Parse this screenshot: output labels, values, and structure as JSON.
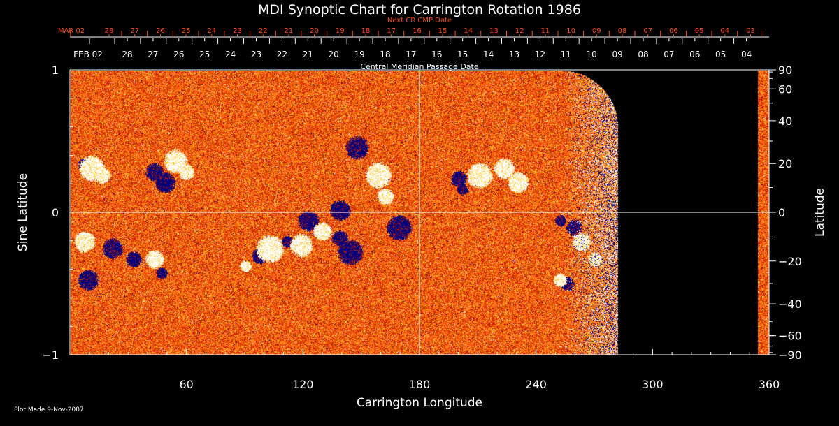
{
  "chart_data": {
    "type": "heatmap",
    "title": "MDI Synoptic Chart for Carrington Rotation 1986",
    "xlabel": "Carrington Longitude",
    "ylabel": "Sine Latitude",
    "ylabel_right": "Latitude",
    "xlim": [
      0,
      360
    ],
    "ylim": [
      -1,
      1
    ],
    "x_ticks": [
      "60",
      "120",
      "180",
      "240",
      "300",
      "360"
    ],
    "y_ticks": [
      "1",
      "0",
      "−1"
    ],
    "y_ticks_right": [
      "90",
      "60",
      "40",
      "20",
      "0",
      "−20",
      "−40",
      "−60",
      "−90"
    ],
    "lat_values": [
      90,
      60,
      40,
      20,
      0,
      -20,
      -40,
      -60,
      -90
    ],
    "top_axis": {
      "label": "Central Meridian Passage Date",
      "start_label": "FEB 02",
      "ticks": [
        "28",
        "27",
        "26",
        "25",
        "24",
        "23",
        "22",
        "21",
        "20",
        "19",
        "18",
        "17",
        "16",
        "15",
        "14",
        "13",
        "12",
        "11",
        "10",
        "09",
        "08",
        "07",
        "06",
        "05",
        "04"
      ]
    },
    "next_cr_axis": {
      "label": "Next CR CMP Date",
      "start_label": "MAR 02",
      "ticks": [
        "28",
        "27",
        "26",
        "25",
        "24",
        "23",
        "22",
        "21",
        "20",
        "19",
        "18",
        "17",
        "16",
        "15",
        "14",
        "13",
        "12",
        "11",
        "10",
        "09",
        "08",
        "07",
        "06",
        "05",
        "04",
        "03"
      ]
    },
    "data_coverage_longitude": [
      [
        0,
        282
      ],
      [
        354,
        360
      ]
    ],
    "grid": "crosshair at longitude 180 and sine latitude 0",
    "colors": {
      "background": "#000000",
      "positive": "#ffffff",
      "negative": "#000080",
      "mid": "#ff6a10",
      "low": "#c81e00",
      "next_cr_axis": "#ff4a10"
    }
  },
  "footer": {
    "plot_made": "Plot Made  9-Nov-2007"
  }
}
